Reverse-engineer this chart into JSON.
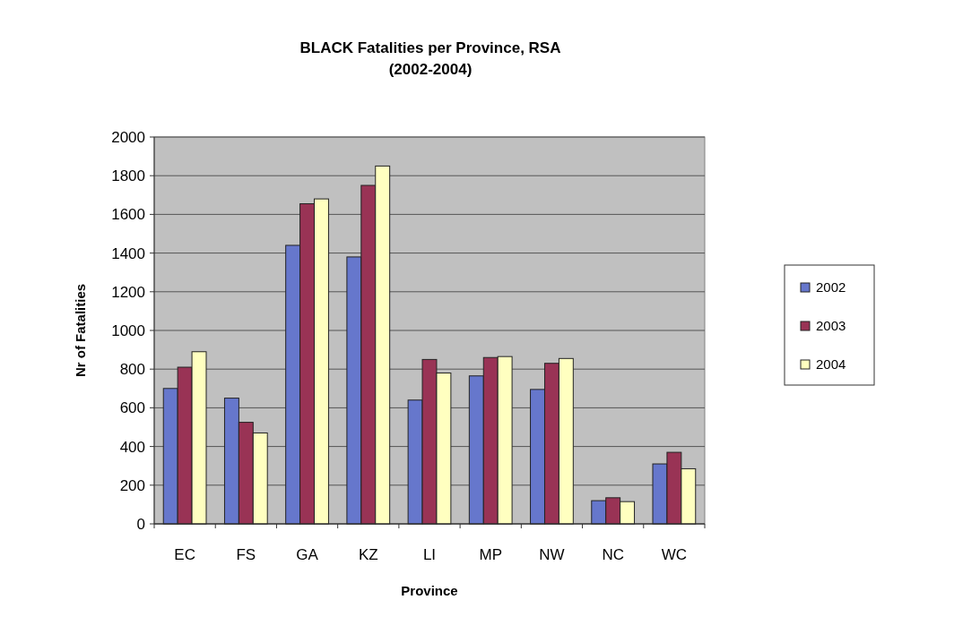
{
  "chart_data": {
    "type": "bar",
    "title": "BLACK Fatalities per Province, RSA\n(2002-2004)",
    "xlabel": "Province",
    "ylabel": "Nr of Fatalities",
    "categories": [
      "EC",
      "FS",
      "GA",
      "KZ",
      "LI",
      "MP",
      "NW",
      "NC",
      "WC"
    ],
    "series": [
      {
        "name": "2002",
        "color": "#6677cc",
        "values": [
          700,
          650,
          1440,
          1380,
          640,
          765,
          695,
          120,
          310
        ]
      },
      {
        "name": "2003",
        "color": "#993355",
        "values": [
          810,
          525,
          1655,
          1750,
          850,
          860,
          830,
          135,
          370
        ]
      },
      {
        "name": "2004",
        "color": "#ffffc0",
        "values": [
          890,
          470,
          1680,
          1850,
          780,
          865,
          855,
          115,
          285
        ]
      }
    ],
    "ylim": [
      0,
      2000
    ],
    "yticks": [
      0,
      200,
      400,
      600,
      800,
      1000,
      1200,
      1400,
      1600,
      1800,
      2000
    ],
    "grid": "y",
    "legend": "right"
  }
}
